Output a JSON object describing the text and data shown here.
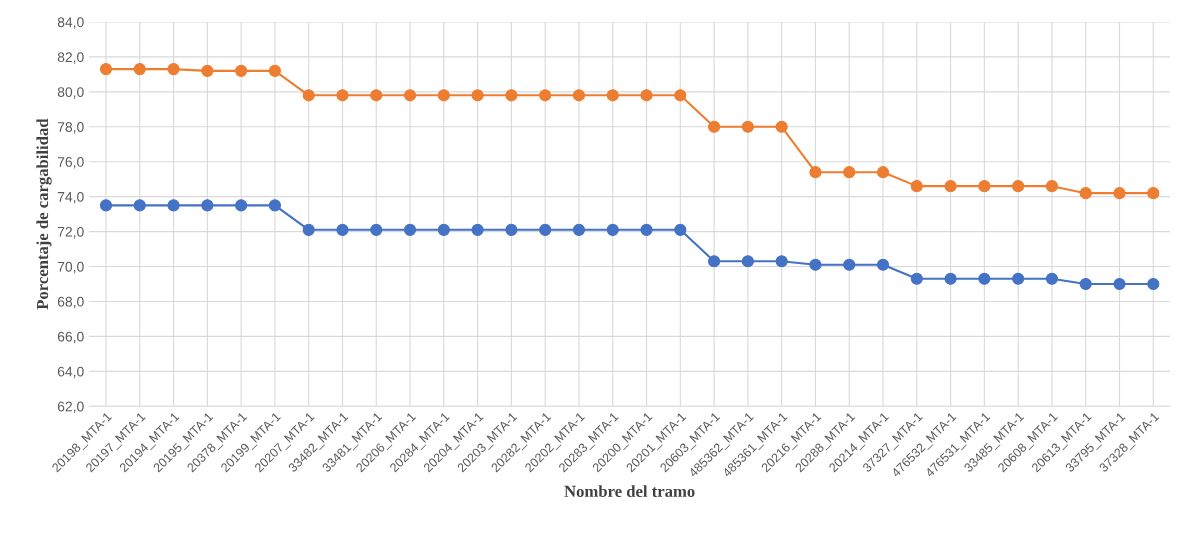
{
  "chart_data": {
    "type": "line",
    "xlabel": "Nombre del tramo",
    "ylabel": "Porcentaje de cargabilidad",
    "categories": [
      "20198_MTA-1",
      "20197_MTA-1",
      "20194_MTA-1",
      "20195_MTA-1",
      "20378_MTA-1",
      "20199_MTA-1",
      "20207_MTA-1",
      "33482_MTA-1",
      "33481_MTA-1",
      "20206_MTA-1",
      "20284_MTA-1",
      "20204_MTA-1",
      "20203_MTA-1",
      "20282_MTA-1",
      "20202_MTA-1",
      "20283_MTA-1",
      "20200_MTA-1",
      "20201_MTA-1",
      "20603_MTA-1",
      "485362_MTA-1",
      "485361_MTA-1",
      "20216_MTA-1",
      "20288_MTA-1",
      "20214_MTA-1",
      "37327_MTA-1",
      "476532_MTA-1",
      "476531_MTA-1",
      "33485_MTA-1",
      "20608_MTA-1",
      "20613_MTA-1",
      "33795_MTA-1",
      "37328_MTA-1"
    ],
    "series": [
      {
        "color": "#4472c4",
        "values": [
          73.5,
          73.5,
          73.5,
          73.5,
          73.5,
          73.5,
          72.1,
          72.1,
          72.1,
          72.1,
          72.1,
          72.1,
          72.1,
          72.1,
          72.1,
          72.1,
          72.1,
          72.1,
          70.3,
          70.3,
          70.3,
          70.1,
          70.1,
          70.1,
          69.3,
          69.3,
          69.3,
          69.3,
          69.3,
          69.0,
          69.0,
          69.0
        ]
      },
      {
        "color": "#ed7d31",
        "values": [
          81.3,
          81.3,
          81.3,
          81.2,
          81.2,
          81.2,
          79.8,
          79.8,
          79.8,
          79.8,
          79.8,
          79.8,
          79.8,
          79.8,
          79.8,
          79.8,
          79.8,
          79.8,
          78.0,
          78.0,
          78.0,
          75.4,
          75.4,
          75.4,
          74.6,
          74.6,
          74.6,
          74.6,
          74.6,
          74.2,
          74.2,
          74.2
        ]
      }
    ],
    "ylim": [
      62,
      84
    ],
    "yticks": [
      {
        "value": 62,
        "label": "62,0"
      },
      {
        "value": 64,
        "label": "64,0"
      },
      {
        "value": 66,
        "label": "66,0"
      },
      {
        "value": 68,
        "label": "68,0"
      },
      {
        "value": 70,
        "label": "70,0"
      },
      {
        "value": 72,
        "label": "72,0"
      },
      {
        "value": 74,
        "label": "74,0"
      },
      {
        "value": 76,
        "label": "76,0"
      },
      {
        "value": 78,
        "label": "78,0"
      },
      {
        "value": 80,
        "label": "80,0"
      },
      {
        "value": 82,
        "label": "82,0"
      },
      {
        "value": 84,
        "label": "84,0"
      }
    ],
    "grid": true,
    "marker": "circle",
    "line_style": "solid",
    "legend": false
  }
}
